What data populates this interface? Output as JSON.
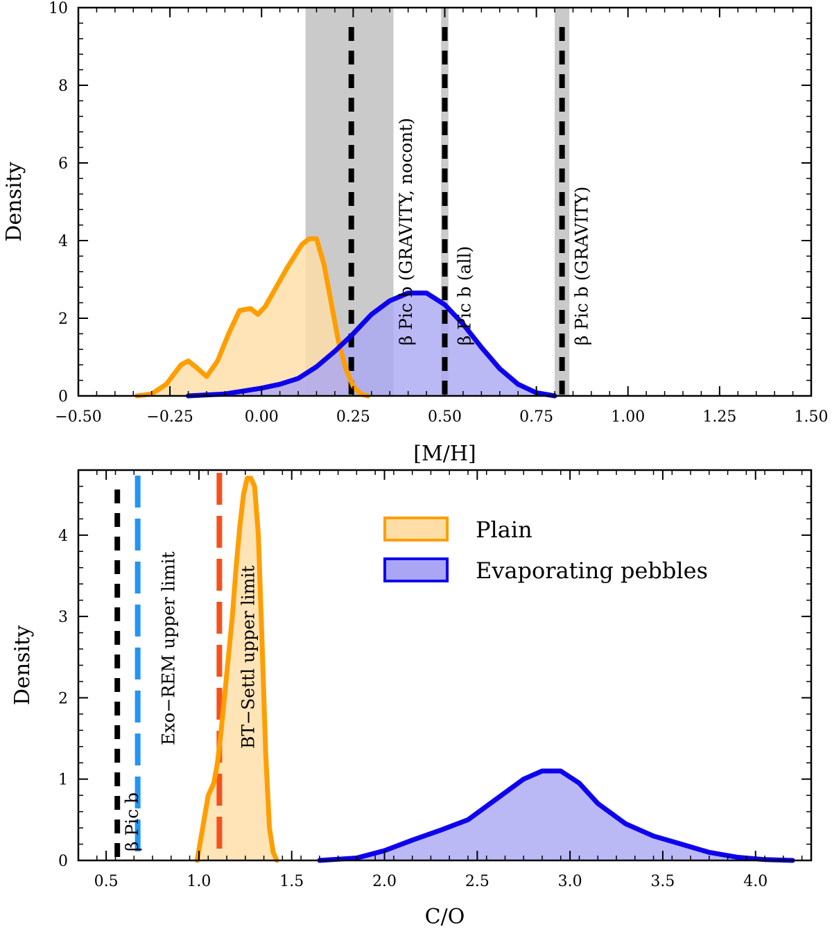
{
  "chart_data": [
    {
      "type": "area",
      "id": "metallicity",
      "xlabel": "[M/H]",
      "ylabel": "Density",
      "xlim": [
        -0.5,
        1.5
      ],
      "ylim": [
        0,
        10
      ],
      "xticks": [
        -0.5,
        -0.25,
        0.0,
        0.25,
        0.5,
        0.75,
        1.0,
        1.25,
        1.5
      ],
      "xtick_labels": [
        "−0.50",
        "−0.25",
        "0.00",
        "0.25",
        "0.50",
        "0.75",
        "1.00",
        "1.25",
        "1.50"
      ],
      "yticks": [
        0,
        2,
        4,
        6,
        8,
        10
      ],
      "ytick_labels": [
        "0",
        "2",
        "4",
        "6",
        "8",
        "10"
      ],
      "series": [
        {
          "name": "Plain",
          "color": "#ff9e00",
          "fill": "#ffdda6",
          "x": [
            -0.34,
            -0.3,
            -0.26,
            -0.22,
            -0.2,
            -0.18,
            -0.15,
            -0.12,
            -0.09,
            -0.06,
            -0.03,
            -0.01,
            0.01,
            0.04,
            0.07,
            0.09,
            0.11,
            0.13,
            0.15,
            0.17,
            0.19,
            0.21,
            0.23,
            0.25,
            0.27,
            0.29
          ],
          "values": [
            0,
            0.05,
            0.3,
            0.8,
            0.9,
            0.75,
            0.5,
            0.9,
            1.6,
            2.2,
            2.25,
            2.1,
            2.3,
            2.8,
            3.3,
            3.6,
            3.9,
            4.05,
            4.05,
            3.4,
            2.4,
            1.4,
            0.7,
            0.25,
            0.05,
            0
          ]
        },
        {
          "name": "Evaporating pebbles",
          "color": "#0d00ee",
          "fill": "#aaa6f4",
          "x": [
            -0.2,
            -0.1,
            0.0,
            0.05,
            0.1,
            0.15,
            0.2,
            0.25,
            0.3,
            0.35,
            0.4,
            0.45,
            0.5,
            0.55,
            0.6,
            0.65,
            0.7,
            0.75,
            0.8
          ],
          "values": [
            0,
            0.05,
            0.2,
            0.3,
            0.45,
            0.75,
            1.15,
            1.6,
            2.1,
            2.45,
            2.65,
            2.65,
            2.35,
            1.85,
            1.25,
            0.7,
            0.3,
            0.08,
            0
          ]
        }
      ],
      "shaded_bands": [
        {
          "x": [
            0.12,
            0.36
          ]
        },
        {
          "x": [
            0.49,
            0.51
          ]
        },
        {
          "x": [
            0.8,
            0.84
          ]
        }
      ],
      "reference_lines": [
        {
          "x": 0.245,
          "color": "#000000",
          "label": ""
        },
        {
          "x": 0.5,
          "color": "#000000",
          "label": ""
        },
        {
          "x": 0.82,
          "color": "#000000",
          "label": ""
        }
      ],
      "annotations": [
        {
          "text": "β Pic b (GRAVITY, nocont)",
          "x": 0.41,
          "y": 1.3
        },
        {
          "text": "β Pic b (all)",
          "x": 0.57,
          "y": 1.3
        },
        {
          "text": "β Pic b (GRAVITY)",
          "x": 0.89,
          "y": 1.3
        }
      ]
    },
    {
      "type": "area",
      "id": "c_to_o",
      "xlabel": "C/O",
      "ylabel": "Density",
      "xlim": [
        0.35,
        4.3
      ],
      "ylim": [
        0,
        4.8
      ],
      "xticks": [
        0.5,
        1.0,
        1.5,
        2.0,
        2.5,
        3.0,
        3.5,
        4.0
      ],
      "xtick_labels": [
        "0.5",
        "1.0",
        "1.5",
        "2.0",
        "2.5",
        "3.0",
        "3.5",
        "4.0"
      ],
      "yticks": [
        0,
        1,
        2,
        3,
        4
      ],
      "ytick_labels": [
        "0",
        "1",
        "2",
        "3",
        "4"
      ],
      "series": [
        {
          "name": "Plain",
          "color": "#ff9e00",
          "fill": "#ffdda6",
          "x": [
            0.99,
            1.02,
            1.05,
            1.08,
            1.1,
            1.12,
            1.15,
            1.18,
            1.2,
            1.22,
            1.24,
            1.26,
            1.28,
            1.3,
            1.32,
            1.34,
            1.36,
            1.38,
            1.4,
            1.42
          ],
          "values": [
            0,
            0.4,
            0.8,
            0.95,
            1.2,
            1.6,
            2.3,
            3.0,
            3.6,
            4.1,
            4.5,
            4.7,
            4.7,
            4.6,
            4.0,
            2.7,
            1.3,
            0.4,
            0.1,
            0
          ]
        },
        {
          "name": "Evaporating pebbles",
          "color": "#0d00ee",
          "fill": "#aaa6f4",
          "x": [
            1.65,
            1.85,
            2.0,
            2.15,
            2.3,
            2.45,
            2.6,
            2.75,
            2.85,
            2.95,
            3.05,
            3.15,
            3.3,
            3.45,
            3.6,
            3.75,
            3.9,
            4.05,
            4.2
          ],
          "values": [
            0,
            0.03,
            0.12,
            0.25,
            0.37,
            0.5,
            0.75,
            1.0,
            1.1,
            1.1,
            0.95,
            0.7,
            0.45,
            0.3,
            0.2,
            0.1,
            0.04,
            0.01,
            0
          ]
        }
      ],
      "reference_lines": [
        {
          "x": 0.56,
          "color": "#000000",
          "label": "β Pic b"
        },
        {
          "x": 0.67,
          "color": "#2196f3",
          "label": "Exo−REM upper limit"
        },
        {
          "x": 1.11,
          "color": "#f4511e",
          "label": "BT−Settl upper limit"
        }
      ],
      "legend": {
        "position": "top-right",
        "entries": [
          "Plain",
          "Evaporating pebbles"
        ]
      }
    }
  ]
}
